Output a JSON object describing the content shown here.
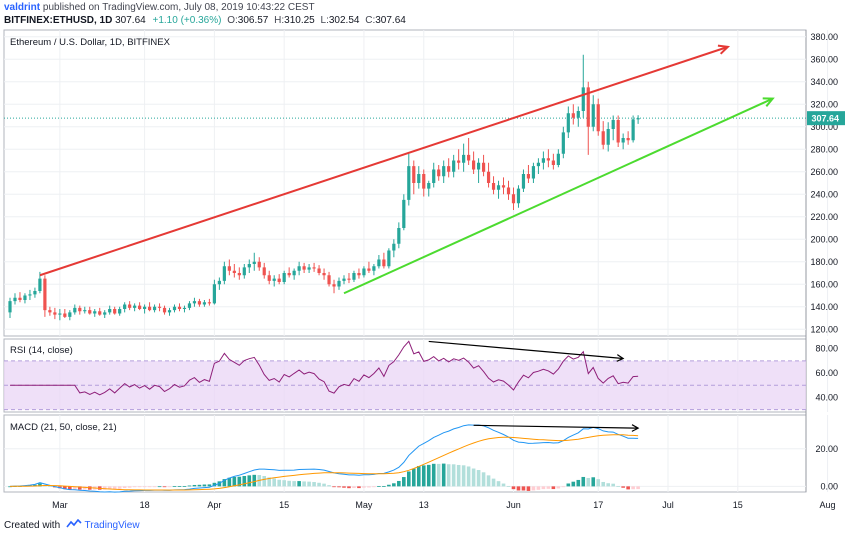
{
  "header": {
    "author": "valdrint",
    "published_text": "published on TradingView.com, July 08, 2019 10:43:22 CEST",
    "symbol": "BITFINEX:ETHUSD, 1D",
    "last": "307.64",
    "change": "+1.10 (+0.36%)",
    "open_label": "O:",
    "open": "306.57",
    "high_label": "H:",
    "high": "310.25",
    "low_label": "L:",
    "low": "302.54",
    "close_label": "C:",
    "close": "307.64"
  },
  "footer": {
    "created_with": "Created with",
    "brand": "TradingView"
  },
  "colors": {
    "up": "#26a69a",
    "down": "#ef5350",
    "rsi_line": "#8e1f79",
    "rsi_band": "#e9d6f5",
    "macd_line": "#2196f3",
    "signal_line": "#ff9800",
    "hist_up_strong": "#26a69a",
    "hist_up_weak": "#b2dfdb",
    "hist_down_strong": "#ef5350",
    "hist_down_weak": "#ffcdd2",
    "upper_trend": "#e53935",
    "lower_trend": "#4cdb2f",
    "divergence": "#000000",
    "last_price_tag": "#26a69a"
  },
  "chart_data": [
    {
      "type": "candlestick",
      "title": "Ethereum / U.S. Dollar, 1D, BITFINEX",
      "xlabels": [
        "Mar",
        "18",
        "Apr",
        "15",
        "May",
        "13",
        "Jun",
        "17",
        "Jul",
        "15",
        "Aug"
      ],
      "ylabels": [
        "380.00",
        "360.00",
        "340.00",
        "320.00",
        "300.00",
        "280.00",
        "260.00",
        "240.00",
        "220.00",
        "200.00",
        "180.00",
        "160.00",
        "140.00",
        "120.00"
      ],
      "ylim": [
        114,
        386
      ],
      "last_price_label": "307.64",
      "last_price": 307.64,
      "x_start": "2019-02-19",
      "candles": [
        {
          "o": 135.0,
          "h": 148.0,
          "l": 130.0,
          "c": 145.0
        },
        {
          "o": 145.0,
          "h": 152.0,
          "l": 142.0,
          "c": 148.0
        },
        {
          "o": 148.0,
          "h": 153.0,
          "l": 144.0,
          "c": 146.0
        },
        {
          "o": 146.0,
          "h": 152.0,
          "l": 143.0,
          "c": 150.0
        },
        {
          "o": 150.0,
          "h": 155.0,
          "l": 146.0,
          "c": 151.0
        },
        {
          "o": 151.0,
          "h": 157.0,
          "l": 148.0,
          "c": 154.0
        },
        {
          "o": 154.0,
          "h": 171.0,
          "l": 152.0,
          "c": 165.0
        },
        {
          "o": 165.0,
          "h": 168.0,
          "l": 131.0,
          "c": 137.0
        },
        {
          "o": 137.0,
          "h": 140.0,
          "l": 132.0,
          "c": 135.0
        },
        {
          "o": 135.0,
          "h": 139.0,
          "l": 129.0,
          "c": 133.0
        },
        {
          "o": 133.0,
          "h": 138.0,
          "l": 128.0,
          "c": 134.0
        },
        {
          "o": 134.0,
          "h": 138.0,
          "l": 130.0,
          "c": 131.0
        },
        {
          "o": 131.0,
          "h": 137.0,
          "l": 128.0,
          "c": 135.0
        },
        {
          "o": 135.0,
          "h": 142.0,
          "l": 133.0,
          "c": 139.0
        },
        {
          "o": 139.0,
          "h": 141.0,
          "l": 133.0,
          "c": 136.0
        },
        {
          "o": 136.0,
          "h": 140.0,
          "l": 134.0,
          "c": 137.0
        },
        {
          "o": 137.0,
          "h": 140.0,
          "l": 133.0,
          "c": 134.0
        },
        {
          "o": 134.0,
          "h": 138.0,
          "l": 131.0,
          "c": 136.0
        },
        {
          "o": 136.0,
          "h": 139.0,
          "l": 132.0,
          "c": 133.0
        },
        {
          "o": 133.0,
          "h": 137.0,
          "l": 130.0,
          "c": 135.0
        },
        {
          "o": 135.0,
          "h": 141.0,
          "l": 133.0,
          "c": 138.0
        },
        {
          "o": 138.0,
          "h": 140.0,
          "l": 133.0,
          "c": 134.0
        },
        {
          "o": 134.0,
          "h": 140.0,
          "l": 132.0,
          "c": 138.0
        },
        {
          "o": 138.0,
          "h": 144.0,
          "l": 135.0,
          "c": 142.0
        },
        {
          "o": 142.0,
          "h": 145.0,
          "l": 137.0,
          "c": 139.0
        },
        {
          "o": 139.0,
          "h": 143.0,
          "l": 136.0,
          "c": 141.0
        },
        {
          "o": 141.0,
          "h": 144.0,
          "l": 137.0,
          "c": 138.0
        },
        {
          "o": 138.0,
          "h": 142.0,
          "l": 134.0,
          "c": 140.0
        },
        {
          "o": 140.0,
          "h": 144.0,
          "l": 136.0,
          "c": 137.0
        },
        {
          "o": 137.0,
          "h": 142.0,
          "l": 135.0,
          "c": 140.0
        },
        {
          "o": 140.0,
          "h": 143.0,
          "l": 136.0,
          "c": 139.0
        },
        {
          "o": 139.0,
          "h": 141.0,
          "l": 133.0,
          "c": 135.0
        },
        {
          "o": 135.0,
          "h": 139.0,
          "l": 132.0,
          "c": 137.0
        },
        {
          "o": 137.0,
          "h": 142.0,
          "l": 135.0,
          "c": 140.0
        },
        {
          "o": 140.0,
          "h": 143.0,
          "l": 136.0,
          "c": 138.0
        },
        {
          "o": 138.0,
          "h": 141.0,
          "l": 135.0,
          "c": 139.0
        },
        {
          "o": 139.0,
          "h": 145.0,
          "l": 137.0,
          "c": 143.0
        },
        {
          "o": 143.0,
          "h": 148.0,
          "l": 140.0,
          "c": 145.0
        },
        {
          "o": 145.0,
          "h": 147.0,
          "l": 140.0,
          "c": 142.0
        },
        {
          "o": 142.0,
          "h": 146.0,
          "l": 140.0,
          "c": 144.0
        },
        {
          "o": 144.0,
          "h": 147.0,
          "l": 141.0,
          "c": 143.0
        },
        {
          "o": 143.0,
          "h": 164.0,
          "l": 142.0,
          "c": 160.0
        },
        {
          "o": 160.0,
          "h": 166.0,
          "l": 155.0,
          "c": 163.0
        },
        {
          "o": 163.0,
          "h": 180.0,
          "l": 160.0,
          "c": 176.0
        },
        {
          "o": 176.0,
          "h": 182.0,
          "l": 168.0,
          "c": 172.0
        },
        {
          "o": 172.0,
          "h": 178.0,
          "l": 166.0,
          "c": 170.0
        },
        {
          "o": 170.0,
          "h": 175.0,
          "l": 164.0,
          "c": 168.0
        },
        {
          "o": 168.0,
          "h": 178.0,
          "l": 165.0,
          "c": 175.0
        },
        {
          "o": 175.0,
          "h": 182.0,
          "l": 170.0,
          "c": 178.0
        },
        {
          "o": 178.0,
          "h": 188.0,
          "l": 172.0,
          "c": 180.0
        },
        {
          "o": 180.0,
          "h": 184.0,
          "l": 172.0,
          "c": 175.0
        },
        {
          "o": 175.0,
          "h": 179.0,
          "l": 165.0,
          "c": 168.0
        },
        {
          "o": 168.0,
          "h": 172.0,
          "l": 160.0,
          "c": 163.0
        },
        {
          "o": 163.0,
          "h": 168.0,
          "l": 158.0,
          "c": 165.0
        },
        {
          "o": 165.0,
          "h": 169.0,
          "l": 160.0,
          "c": 162.0
        },
        {
          "o": 162.0,
          "h": 172.0,
          "l": 160.0,
          "c": 170.0
        },
        {
          "o": 170.0,
          "h": 175.0,
          "l": 166.0,
          "c": 168.0
        },
        {
          "o": 168.0,
          "h": 174.0,
          "l": 164.0,
          "c": 172.0
        },
        {
          "o": 172.0,
          "h": 180.0,
          "l": 168.0,
          "c": 176.0
        },
        {
          "o": 176.0,
          "h": 179.0,
          "l": 170.0,
          "c": 173.0
        },
        {
          "o": 173.0,
          "h": 178.0,
          "l": 170.0,
          "c": 175.0
        },
        {
          "o": 175.0,
          "h": 179.0,
          "l": 171.0,
          "c": 174.0
        },
        {
          "o": 174.0,
          "h": 177.0,
          "l": 168.0,
          "c": 170.0
        },
        {
          "o": 170.0,
          "h": 174.0,
          "l": 164.0,
          "c": 168.0
        },
        {
          "o": 168.0,
          "h": 171.0,
          "l": 158.0,
          "c": 160.0
        },
        {
          "o": 160.0,
          "h": 164.0,
          "l": 152.0,
          "c": 158.0
        },
        {
          "o": 158.0,
          "h": 166.0,
          "l": 155.0,
          "c": 163.0
        },
        {
          "o": 163.0,
          "h": 168.0,
          "l": 160.0,
          "c": 165.0
        },
        {
          "o": 165.0,
          "h": 170.0,
          "l": 161.0,
          "c": 164.0
        },
        {
          "o": 164.0,
          "h": 172.0,
          "l": 162.0,
          "c": 170.0
        },
        {
          "o": 170.0,
          "h": 174.0,
          "l": 165.0,
          "c": 168.0
        },
        {
          "o": 168.0,
          "h": 176.0,
          "l": 166.0,
          "c": 174.0
        },
        {
          "o": 174.0,
          "h": 180.0,
          "l": 170.0,
          "c": 172.0
        },
        {
          "o": 172.0,
          "h": 178.0,
          "l": 168.0,
          "c": 176.0
        },
        {
          "o": 176.0,
          "h": 186.0,
          "l": 174.0,
          "c": 182.0
        },
        {
          "o": 182.0,
          "h": 188.0,
          "l": 174.0,
          "c": 176.0
        },
        {
          "o": 176.0,
          "h": 192.0,
          "l": 174.0,
          "c": 190.0
        },
        {
          "o": 190.0,
          "h": 200.0,
          "l": 184.0,
          "c": 196.0
        },
        {
          "o": 196.0,
          "h": 215.0,
          "l": 192.0,
          "c": 210.0
        },
        {
          "o": 210.0,
          "h": 240.0,
          "l": 208.0,
          "c": 235.0
        },
        {
          "o": 235.0,
          "h": 276.0,
          "l": 230.0,
          "c": 265.0
        },
        {
          "o": 265.0,
          "h": 270.0,
          "l": 240.0,
          "c": 250.0
        },
        {
          "o": 250.0,
          "h": 265.0,
          "l": 245.0,
          "c": 258.0
        },
        {
          "o": 258.0,
          "h": 262.0,
          "l": 238.0,
          "c": 245.0
        },
        {
          "o": 245.0,
          "h": 252.0,
          "l": 238.0,
          "c": 250.0
        },
        {
          "o": 250.0,
          "h": 268.0,
          "l": 246.0,
          "c": 262.0
        },
        {
          "o": 262.0,
          "h": 266.0,
          "l": 252.0,
          "c": 256.0
        },
        {
          "o": 256.0,
          "h": 270.0,
          "l": 250.0,
          "c": 265.0
        },
        {
          "o": 265.0,
          "h": 272.0,
          "l": 255.0,
          "c": 260.0
        },
        {
          "o": 260.0,
          "h": 275.0,
          "l": 255.0,
          "c": 270.0
        },
        {
          "o": 270.0,
          "h": 280.0,
          "l": 262.0,
          "c": 268.0
        },
        {
          "o": 268.0,
          "h": 285.0,
          "l": 260.0,
          "c": 275.0
        },
        {
          "o": 275.0,
          "h": 290.0,
          "l": 266.0,
          "c": 270.0
        },
        {
          "o": 270.0,
          "h": 278.0,
          "l": 258.0,
          "c": 262.0
        },
        {
          "o": 262.0,
          "h": 272.0,
          "l": 250.0,
          "c": 268.0
        },
        {
          "o": 268.0,
          "h": 275.0,
          "l": 256.0,
          "c": 260.0
        },
        {
          "o": 260.0,
          "h": 268.0,
          "l": 246.0,
          "c": 250.0
        },
        {
          "o": 250.0,
          "h": 256.0,
          "l": 240.0,
          "c": 244.0
        },
        {
          "o": 244.0,
          "h": 252.0,
          "l": 236.0,
          "c": 248.0
        },
        {
          "o": 248.0,
          "h": 255.0,
          "l": 240.0,
          "c": 246.0
        },
        {
          "o": 246.0,
          "h": 252.0,
          "l": 235.0,
          "c": 240.0
        },
        {
          "o": 240.0,
          "h": 246.0,
          "l": 226.0,
          "c": 232.0
        },
        {
          "o": 232.0,
          "h": 248.0,
          "l": 228.0,
          "c": 245.0
        },
        {
          "o": 245.0,
          "h": 262.0,
          "l": 242.0,
          "c": 258.0
        },
        {
          "o": 258.0,
          "h": 266.0,
          "l": 250.0,
          "c": 254.0
        },
        {
          "o": 254.0,
          "h": 268.0,
          "l": 250.0,
          "c": 265.0
        },
        {
          "o": 265.0,
          "h": 272.0,
          "l": 258.0,
          "c": 268.0
        },
        {
          "o": 268.0,
          "h": 278.0,
          "l": 262.0,
          "c": 272.0
        },
        {
          "o": 272.0,
          "h": 280.0,
          "l": 264.0,
          "c": 270.0
        },
        {
          "o": 270.0,
          "h": 276.0,
          "l": 262.0,
          "c": 266.0
        },
        {
          "o": 266.0,
          "h": 280.0,
          "l": 264.0,
          "c": 276.0
        },
        {
          "o": 276.0,
          "h": 300.0,
          "l": 272.0,
          "c": 295.0
        },
        {
          "o": 295.0,
          "h": 318.0,
          "l": 290.0,
          "c": 312.0
        },
        {
          "o": 312.0,
          "h": 320.0,
          "l": 302.0,
          "c": 308.0
        },
        {
          "o": 308.0,
          "h": 318.0,
          "l": 300.0,
          "c": 314.0
        },
        {
          "o": 314.0,
          "h": 364.0,
          "l": 308.0,
          "c": 335.0
        },
        {
          "o": 335.0,
          "h": 340.0,
          "l": 275.0,
          "c": 300.0
        },
        {
          "o": 300.0,
          "h": 328.0,
          "l": 296.0,
          "c": 320.0
        },
        {
          "o": 320.0,
          "h": 325.0,
          "l": 292.0,
          "c": 296.0
        },
        {
          "o": 296.0,
          "h": 305.0,
          "l": 280.0,
          "c": 284.0
        },
        {
          "o": 284.0,
          "h": 304.0,
          "l": 278.0,
          "c": 298.0
        },
        {
          "o": 298.0,
          "h": 310.0,
          "l": 288.0,
          "c": 306.0
        },
        {
          "o": 306.0,
          "h": 310.0,
          "l": 282.0,
          "c": 286.0
        },
        {
          "o": 286.0,
          "h": 294.0,
          "l": 280.0,
          "c": 290.0
        },
        {
          "o": 290.0,
          "h": 296.0,
          "l": 284.0,
          "c": 288.0
        },
        {
          "o": 288.0,
          "h": 310.0,
          "l": 286.0,
          "c": 306.57
        },
        {
          "o": 306.57,
          "h": 310.25,
          "l": 302.54,
          "c": 307.64
        }
      ]
    },
    {
      "type": "line",
      "title": "RSI (14, close)",
      "ylabels": [
        "80.00",
        "60.00",
        "40.00"
      ],
      "ylim": [
        28,
        88
      ],
      "band": [
        30,
        70
      ],
      "midline": 50
    },
    {
      "type": "bar",
      "title": "MACD (21, 50, close, 21)",
      "ylabels": [
        "20.00",
        "0.00"
      ],
      "ylim": [
        -3,
        38
      ]
    }
  ]
}
